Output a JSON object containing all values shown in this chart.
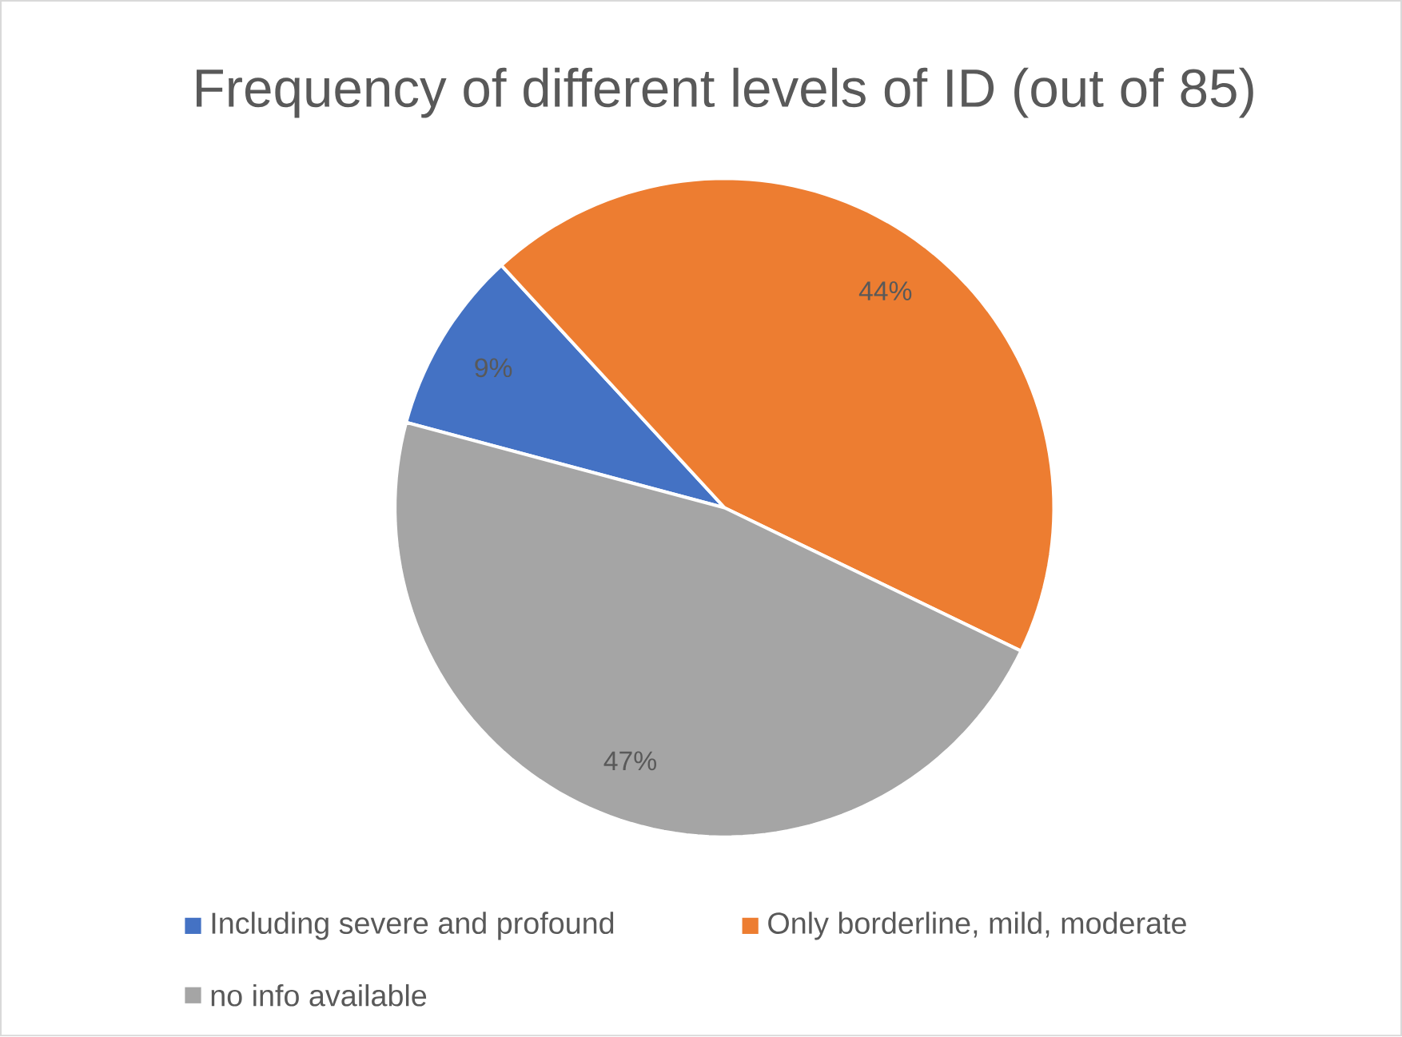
{
  "chart_data": {
    "type": "pie",
    "title": "Frequency of different levels of ID (out of 85)",
    "categories": [
      "Including severe and profound",
      "Only borderline, mild, moderate",
      "no info available"
    ],
    "values": [
      9,
      44,
      47
    ],
    "value_labels": [
      "9%",
      "44%",
      "47%"
    ],
    "colors": [
      "#4472c4",
      "#ed7d31",
      "#a5a5a5"
    ],
    "legend": "bottom"
  }
}
